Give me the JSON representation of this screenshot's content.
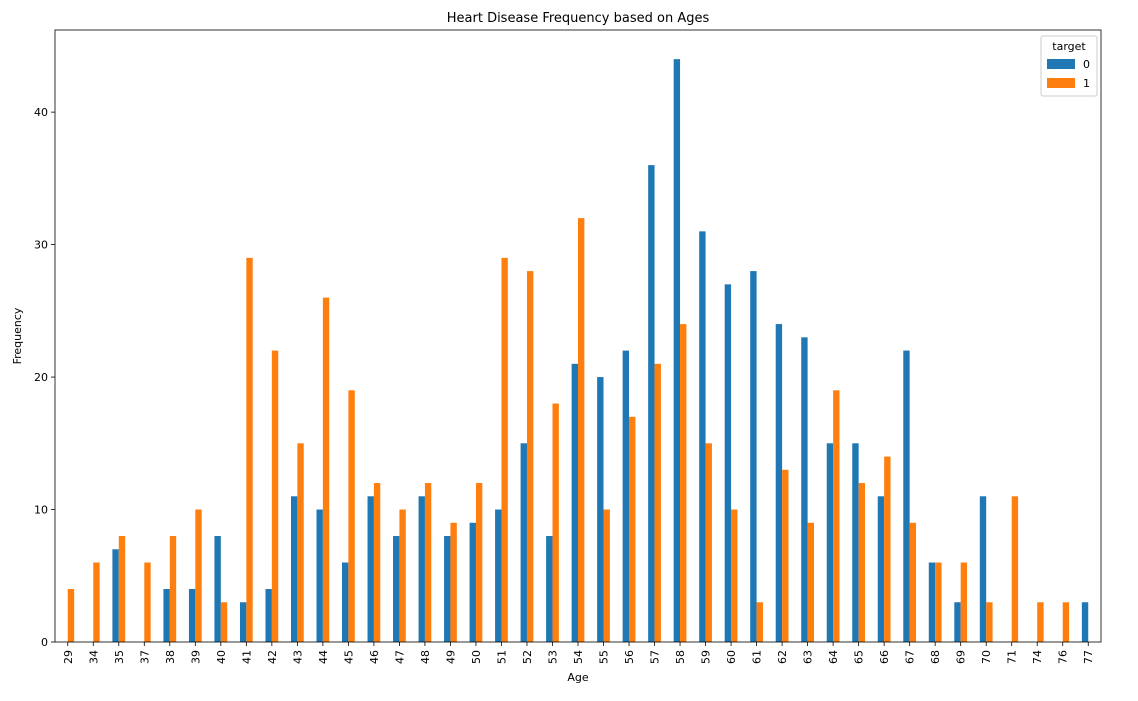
{
  "chart_data": {
    "type": "bar",
    "title": "Heart Disease Frequency based on Ages",
    "xlabel": "Age",
    "ylabel": "Frequency",
    "ylim": [
      0,
      46.2
    ],
    "yticks": [
      0,
      10,
      20,
      30,
      40
    ],
    "legend": {
      "title": "target",
      "position": "top-right"
    },
    "categories": [
      "29",
      "34",
      "35",
      "37",
      "38",
      "39",
      "40",
      "41",
      "42",
      "43",
      "44",
      "45",
      "46",
      "47",
      "48",
      "49",
      "50",
      "51",
      "52",
      "53",
      "54",
      "55",
      "56",
      "57",
      "58",
      "59",
      "60",
      "61",
      "62",
      "63",
      "64",
      "65",
      "66",
      "67",
      "68",
      "69",
      "70",
      "71",
      "74",
      "76",
      "77"
    ],
    "series": [
      {
        "name": "0",
        "color": "#1f77b4",
        "values": [
          0,
          0,
          7,
          0,
          4,
          4,
          8,
          3,
          4,
          11,
          10,
          6,
          11,
          8,
          11,
          8,
          9,
          10,
          15,
          8,
          21,
          20,
          22,
          36,
          44,
          31,
          27,
          28,
          24,
          23,
          15,
          15,
          11,
          22,
          6,
          3,
          11,
          0,
          0,
          0,
          3
        ]
      },
      {
        "name": "1",
        "color": "#ff7f0e",
        "values": [
          4,
          6,
          8,
          6,
          8,
          10,
          3,
          29,
          22,
          15,
          26,
          19,
          12,
          10,
          12,
          9,
          12,
          29,
          28,
          18,
          32,
          10,
          17,
          21,
          24,
          15,
          10,
          3,
          13,
          9,
          19,
          12,
          14,
          9,
          6,
          6,
          3,
          11,
          3,
          3,
          0
        ]
      }
    ]
  }
}
